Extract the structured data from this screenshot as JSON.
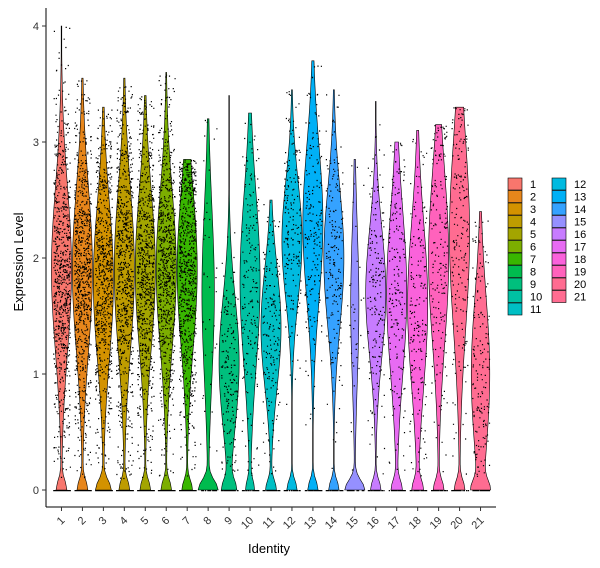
{
  "chart_data": {
    "type": "violin",
    "title": "",
    "xlabel": "Identity",
    "ylabel": "Expression Level",
    "ylim": [
      -0.1,
      4.25
    ],
    "yticks": [
      "0",
      "1",
      "2",
      "3",
      "4"
    ],
    "legend_placement": "right",
    "grid": false,
    "categories": [
      "1",
      "2",
      "3",
      "4",
      "5",
      "6",
      "7",
      "8",
      "9",
      "10",
      "11",
      "12",
      "13",
      "14",
      "15",
      "16",
      "17",
      "18",
      "19",
      "20",
      "21"
    ],
    "colors": [
      "#F8766D",
      "#E7861B",
      "#D39200",
      "#BE9C00",
      "#A3A500",
      "#7CAE00",
      "#39B600",
      "#00BB4E",
      "#00BF7D",
      "#00C1A3",
      "#00BFC4",
      "#00BAE0",
      "#00B0F6",
      "#35A2FF",
      "#9590FF",
      "#C77CFF",
      "#E76BF3",
      "#FA62DB",
      "#FF62BC",
      "#FF6C91",
      "#FF6C91"
    ],
    "series": [
      {
        "name": "1",
        "max": 4.0,
        "median": 1.9,
        "upper_q": 2.4,
        "lower_q": 1.45,
        "zero_frac": 0.25
      },
      {
        "name": "2",
        "max": 3.55,
        "median": 1.9,
        "upper_q": 2.4,
        "lower_q": 1.45,
        "zero_frac": 0.25
      },
      {
        "name": "3",
        "max": 3.3,
        "median": 1.8,
        "upper_q": 2.3,
        "lower_q": 1.4,
        "zero_frac": 0.35
      },
      {
        "name": "4",
        "max": 3.55,
        "median": 1.9,
        "upper_q": 2.4,
        "lower_q": 1.45,
        "zero_frac": 0.25
      },
      {
        "name": "5",
        "max": 3.4,
        "median": 1.9,
        "upper_q": 2.35,
        "lower_q": 1.45,
        "zero_frac": 0.25
      },
      {
        "name": "6",
        "max": 3.6,
        "median": 1.9,
        "upper_q": 2.35,
        "lower_q": 1.45,
        "zero_frac": 0.25
      },
      {
        "name": "7",
        "max": 2.85,
        "median": 1.9,
        "upper_q": 2.35,
        "lower_q": 1.45,
        "zero_frac": 0.25
      },
      {
        "name": "8",
        "max": 3.2,
        "median": 1.7,
        "upper_q": 2.2,
        "lower_q": 1.2,
        "zero_frac": 0.6
      },
      {
        "name": "9",
        "max": 3.4,
        "median": 1.1,
        "upper_q": 1.5,
        "lower_q": 0.75,
        "zero_frac": 0.3
      },
      {
        "name": "10",
        "max": 3.25,
        "median": 1.8,
        "upper_q": 2.3,
        "lower_q": 1.3,
        "zero_frac": 0.2
      },
      {
        "name": "11",
        "max": 2.5,
        "median": 1.4,
        "upper_q": 1.75,
        "lower_q": 1.05,
        "zero_frac": 0.25
      },
      {
        "name": "12",
        "max": 3.45,
        "median": 2.15,
        "upper_q": 2.5,
        "lower_q": 1.8,
        "zero_frac": 0.25
      },
      {
        "name": "13",
        "max": 3.7,
        "median": 2.3,
        "upper_q": 2.8,
        "lower_q": 1.9,
        "zero_frac": 0.25
      },
      {
        "name": "14",
        "max": 3.45,
        "median": 2.0,
        "upper_q": 2.4,
        "lower_q": 1.6,
        "zero_frac": 0.25
      },
      {
        "name": "15",
        "max": 2.85,
        "median": 1.6,
        "upper_q": 2.1,
        "lower_q": 1.2,
        "zero_frac": 0.8
      },
      {
        "name": "16",
        "max": 3.35,
        "median": 1.7,
        "upper_q": 2.1,
        "lower_q": 1.35,
        "zero_frac": 0.25
      },
      {
        "name": "17",
        "max": 3.0,
        "median": 1.7,
        "upper_q": 2.15,
        "lower_q": 1.2,
        "zero_frac": 0.25
      },
      {
        "name": "18",
        "max": 3.1,
        "median": 1.6,
        "upper_q": 2.1,
        "lower_q": 1.15,
        "zero_frac": 0.25
      },
      {
        "name": "19",
        "max": 3.15,
        "median": 2.0,
        "upper_q": 2.5,
        "lower_q": 1.5,
        "zero_frac": 0.25
      },
      {
        "name": "20",
        "max": 3.3,
        "median": 2.2,
        "upper_q": 2.7,
        "lower_q": 1.6,
        "zero_frac": 0.25
      },
      {
        "name": "21",
        "max": 2.4,
        "median": 1.0,
        "upper_q": 1.5,
        "lower_q": 0.6,
        "zero_frac": 0.35
      }
    ]
  }
}
